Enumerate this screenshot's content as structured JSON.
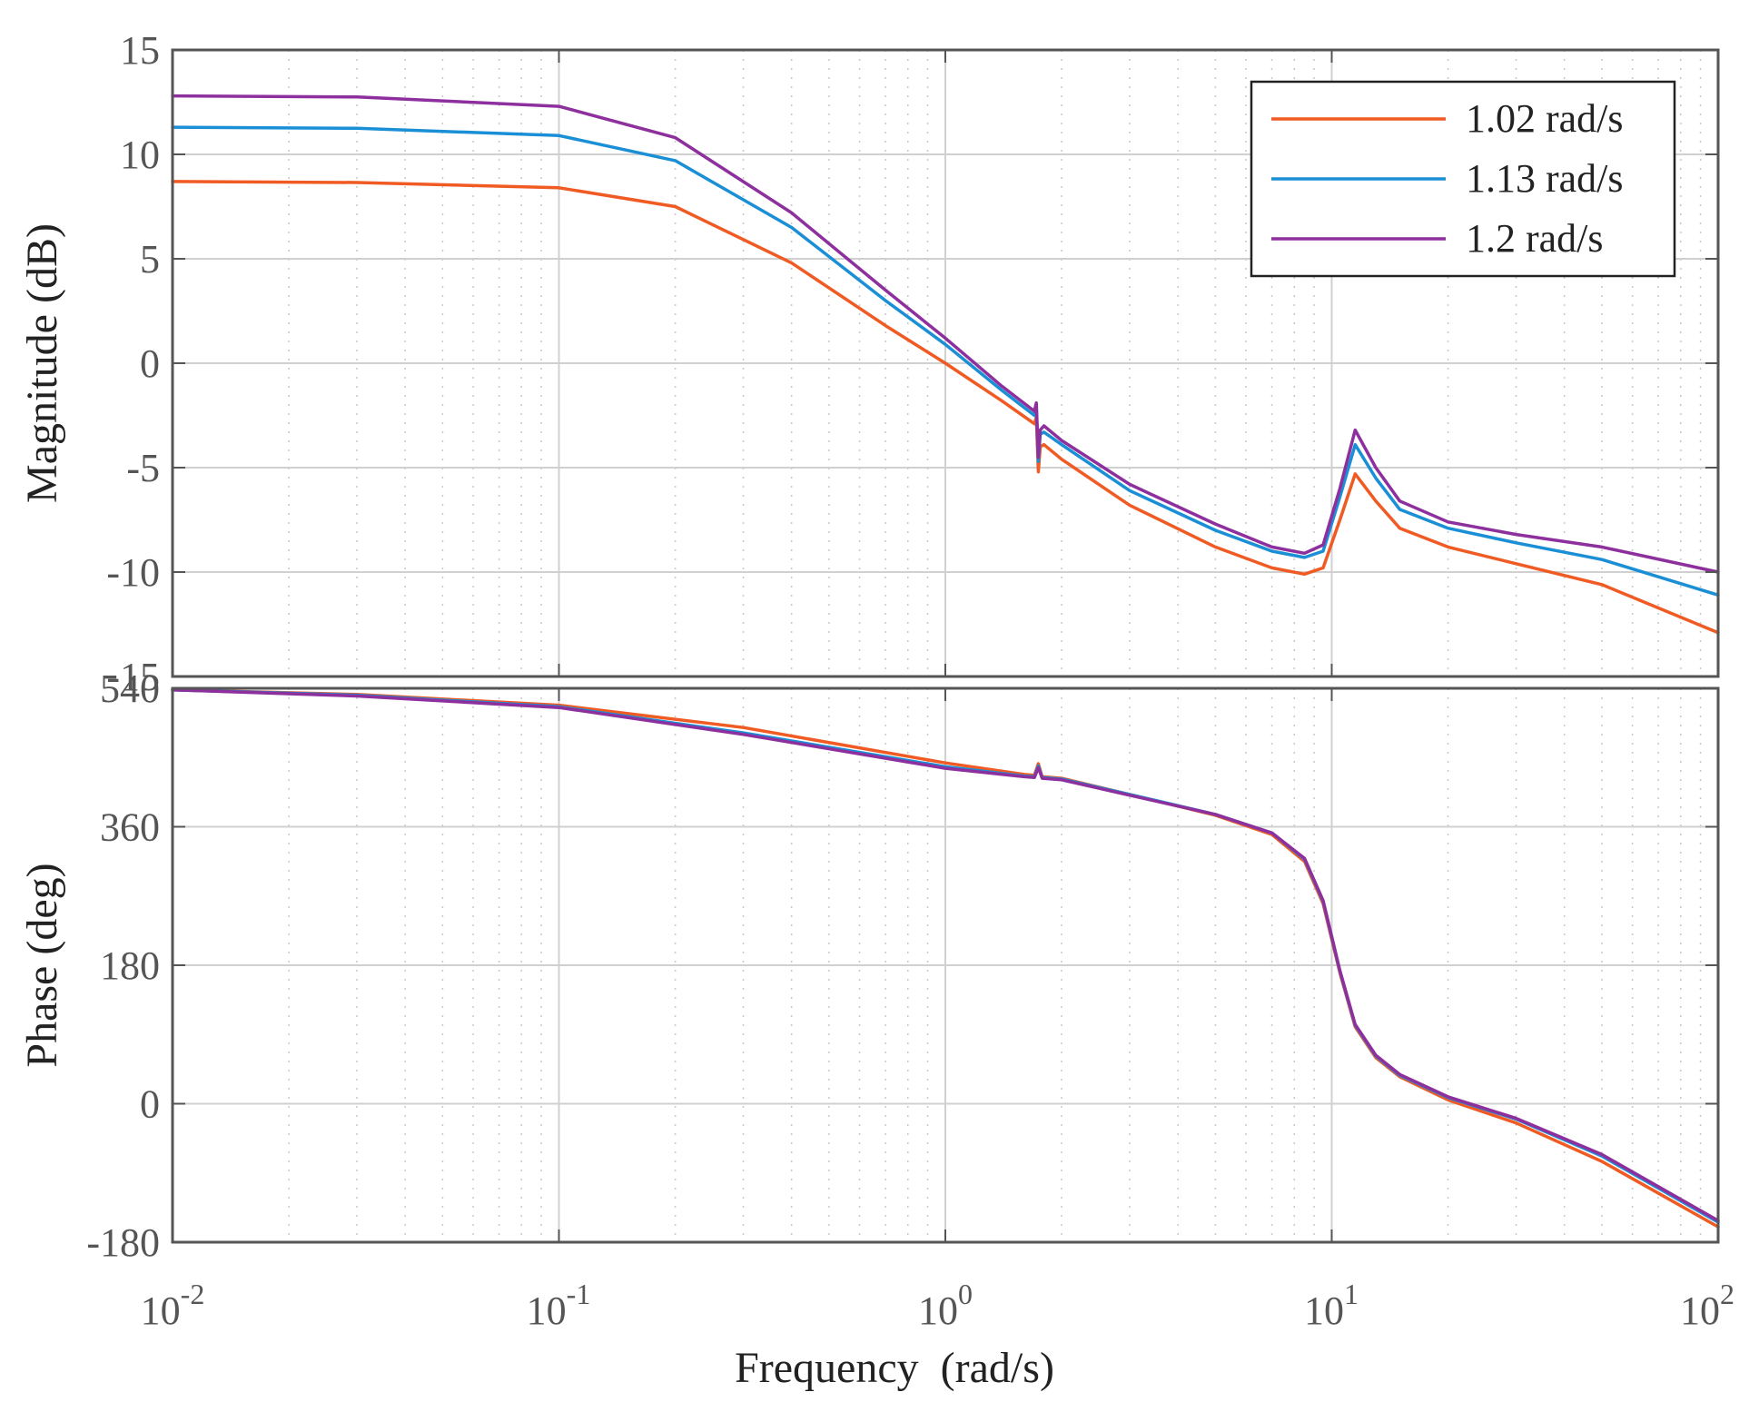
{
  "chart_data": [
    {
      "type": "line",
      "name": "magnitude",
      "xscale": "log",
      "xlim": [
        0.01,
        100
      ],
      "ylim": [
        -15,
        15
      ],
      "ylabel": "Magnitude (dB)",
      "yticks": [
        15,
        10,
        5,
        0,
        -5,
        -10,
        -15
      ],
      "ytick_labels": [
        "15",
        "10",
        "5",
        "0",
        "-5",
        "-10",
        "-15"
      ],
      "grid": true,
      "legend_position": "top-right",
      "x": [
        0.01,
        0.03,
        0.1,
        0.2,
        0.4,
        0.7,
        1.0,
        1.4,
        1.7,
        1.72,
        1.74,
        1.76,
        1.8,
        2,
        3,
        5,
        7,
        8.5,
        9.5,
        10.5,
        11.5,
        13,
        15,
        20,
        30,
        50,
        100
      ],
      "series": [
        {
          "name": "1.02 rad/s",
          "color": "#f05a23",
          "values": [
            8.7,
            8.65,
            8.4,
            7.5,
            4.8,
            1.8,
            0.0,
            -1.8,
            -2.9,
            -2.6,
            -5.2,
            -4.0,
            -3.9,
            -4.6,
            -6.8,
            -8.8,
            -9.8,
            -10.1,
            -9.8,
            -7.5,
            -5.3,
            -6.6,
            -7.9,
            -8.8,
            -9.6,
            -10.6,
            -12.9
          ]
        },
        {
          "name": "1.13 rad/s",
          "color": "#1a8fd6",
          "values": [
            11.3,
            11.25,
            10.9,
            9.7,
            6.5,
            3.0,
            0.9,
            -1.3,
            -2.5,
            -2.1,
            -4.7,
            -3.4,
            -3.3,
            -3.9,
            -6.1,
            -8.0,
            -9.0,
            -9.3,
            -9.0,
            -6.4,
            -3.9,
            -5.5,
            -7.0,
            -7.9,
            -8.6,
            -9.4,
            -11.1
          ]
        },
        {
          "name": "1.2 rad/s",
          "color": "#8e2f9e",
          "values": [
            12.8,
            12.75,
            12.3,
            10.8,
            7.2,
            3.5,
            1.2,
            -1.1,
            -2.3,
            -1.9,
            -4.5,
            -3.2,
            -3.0,
            -3.7,
            -5.8,
            -7.7,
            -8.8,
            -9.1,
            -8.7,
            -6.0,
            -3.2,
            -5.0,
            -6.6,
            -7.6,
            -8.2,
            -8.8,
            -10.0
          ]
        }
      ]
    },
    {
      "type": "line",
      "name": "phase",
      "xscale": "log",
      "xlim": [
        0.01,
        100
      ],
      "ylim": [
        -180,
        540
      ],
      "ylabel": "Phase (deg)",
      "xlabel": "Frequency  (rad/s)",
      "yticks": [
        540,
        360,
        180,
        0,
        -180
      ],
      "ytick_labels": [
        "540",
        "360",
        "180",
        "0",
        "-180"
      ],
      "xticks": [
        0.01,
        0.1,
        1,
        10,
        100
      ],
      "xtick_bases": [
        "10",
        "10",
        "10",
        "10",
        "10"
      ],
      "xtick_exponents": [
        "-2",
        "-1",
        "0",
        "1",
        "2"
      ],
      "grid": true,
      "x": [
        0.01,
        0.03,
        0.1,
        0.3,
        1.0,
        1.6,
        1.7,
        1.74,
        1.78,
        2,
        3,
        5,
        7,
        8.5,
        9.5,
        10.5,
        11.5,
        13,
        15,
        20,
        30,
        50,
        100
      ],
      "series": [
        {
          "name": "1.02 rad/s",
          "color": "#f05a23",
          "values": [
            538,
            532,
            518,
            489,
            443,
            428,
            427,
            442,
            425,
            423,
            402,
            375,
            350,
            315,
            260,
            170,
            100,
            60,
            35,
            5,
            -25,
            -75,
            -160
          ]
        },
        {
          "name": "1.13 rad/s",
          "color": "#1a8fd6",
          "values": [
            538,
            531,
            516,
            482,
            438,
            426,
            425,
            439,
            424,
            422,
            402,
            376,
            352,
            318,
            263,
            172,
            102,
            62,
            37,
            8,
            -20,
            -68,
            -154
          ]
        },
        {
          "name": "1.2 rad/s",
          "color": "#8e2f9e",
          "values": [
            538,
            530,
            515,
            480,
            436,
            425,
            424,
            437,
            423,
            421,
            401,
            376,
            352,
            319,
            264,
            173,
            103,
            63,
            38,
            9,
            -19,
            -66,
            -152
          ]
        }
      ]
    }
  ]
}
